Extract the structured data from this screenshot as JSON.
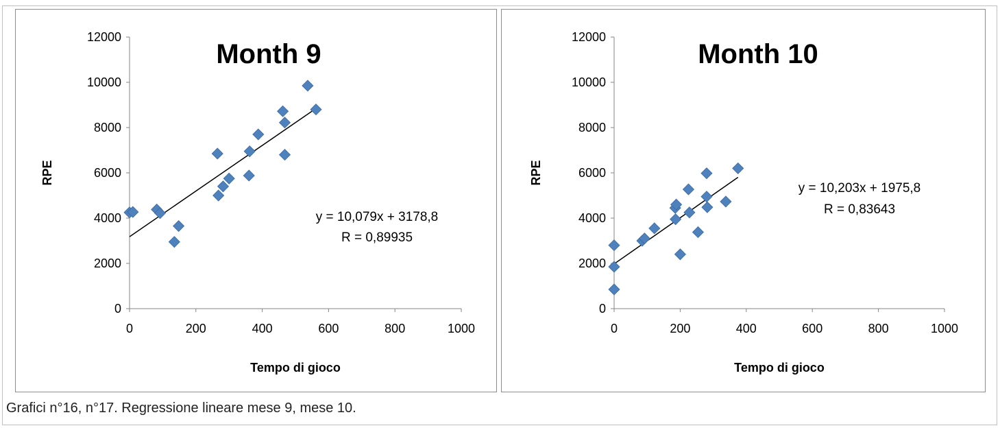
{
  "caption": "Grafici n°16, n°17. Regressione lineare mese 9, mese 10.",
  "colors": {
    "marker": "#4f81bd",
    "marker_edge": "#3a6aa3",
    "axis": "#868686",
    "trend": "#000000"
  },
  "chart_data": [
    {
      "type": "scatter",
      "title": "Month 9",
      "xlabel": "Tempo di gioco",
      "ylabel": "RPE",
      "xlim": [
        0,
        1000
      ],
      "ylim": [
        0,
        12000
      ],
      "xticks": [
        "0",
        "200",
        "400",
        "600",
        "800",
        "1000"
      ],
      "yticks": [
        "0",
        "2000",
        "4000",
        "6000",
        "8000",
        "10000",
        "12000"
      ],
      "grid": false,
      "legend": "none",
      "marker": "diamond",
      "points": [
        {
          "x": 0,
          "y": 4250
        },
        {
          "x": 10,
          "y": 4270
        },
        {
          "x": 82,
          "y": 4380
        },
        {
          "x": 92,
          "y": 4220
        },
        {
          "x": 135,
          "y": 2950
        },
        {
          "x": 148,
          "y": 3650
        },
        {
          "x": 265,
          "y": 6850
        },
        {
          "x": 268,
          "y": 5000
        },
        {
          "x": 282,
          "y": 5400
        },
        {
          "x": 300,
          "y": 5750
        },
        {
          "x": 360,
          "y": 5880
        },
        {
          "x": 362,
          "y": 6950
        },
        {
          "x": 388,
          "y": 7700
        },
        {
          "x": 462,
          "y": 8720
        },
        {
          "x": 468,
          "y": 8220
        },
        {
          "x": 468,
          "y": 6800
        },
        {
          "x": 537,
          "y": 9850
        },
        {
          "x": 562,
          "y": 8800
        }
      ],
      "trendline": {
        "slope": 10.079,
        "intercept": 3178.8,
        "x_range": [
          0,
          562
        ],
        "equation": "y = 10,079x + 3178,8",
        "r_label": "R = 0,89935"
      }
    },
    {
      "type": "scatter",
      "title": "Month 10",
      "xlabel": "Tempo di gioco",
      "ylabel": "RPE",
      "xlim": [
        0,
        1000
      ],
      "ylim": [
        0,
        12000
      ],
      "xticks": [
        "0",
        "200",
        "400",
        "600",
        "800",
        "1000"
      ],
      "yticks": [
        "0",
        "2000",
        "4000",
        "6000",
        "8000",
        "10000",
        "12000"
      ],
      "grid": false,
      "legend": "none",
      "marker": "diamond",
      "points": [
        {
          "x": 0,
          "y": 2800
        },
        {
          "x": 0,
          "y": 1850
        },
        {
          "x": 0,
          "y": 850
        },
        {
          "x": 85,
          "y": 3000
        },
        {
          "x": 92,
          "y": 3100
        },
        {
          "x": 122,
          "y": 3550
        },
        {
          "x": 185,
          "y": 4450
        },
        {
          "x": 188,
          "y": 4600
        },
        {
          "x": 186,
          "y": 3950
        },
        {
          "x": 200,
          "y": 2400
        },
        {
          "x": 225,
          "y": 5270
        },
        {
          "x": 228,
          "y": 4250
        },
        {
          "x": 254,
          "y": 3380
        },
        {
          "x": 280,
          "y": 5980
        },
        {
          "x": 280,
          "y": 4950
        },
        {
          "x": 282,
          "y": 4480
        },
        {
          "x": 338,
          "y": 4730
        },
        {
          "x": 375,
          "y": 6200
        }
      ],
      "trendline": {
        "slope": 10.203,
        "intercept": 1975.8,
        "x_range": [
          0,
          375
        ],
        "equation": "y = 10,203x + 1975,8",
        "r_label": "R = 0,83643"
      }
    }
  ]
}
